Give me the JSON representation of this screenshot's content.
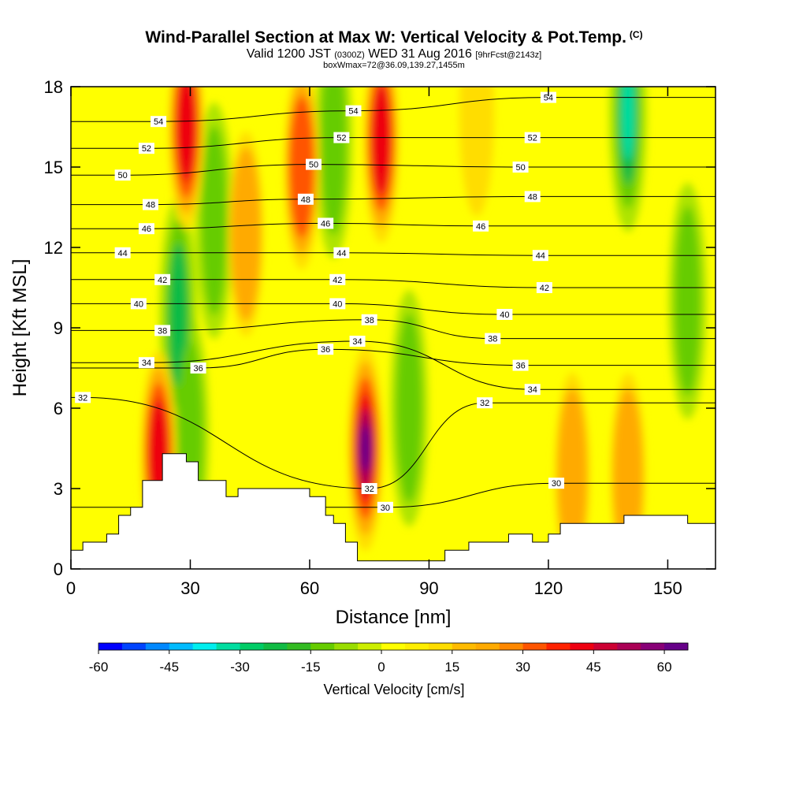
{
  "header": {
    "title": "Wind-Parallel Section at Max W: Vertical Velocity & Pot.Temp.",
    "copyright": "(C)",
    "valid_prefix": "Valid 1200 JST",
    "valid_utc": "(0300Z)",
    "valid_date": "WED 31 Aug 2016",
    "forecast": "[9hrFcst@2143z]",
    "box_info": "boxWmax=72@36.09,139.27,1455m"
  },
  "chart_data": {
    "type": "heatmap",
    "xlabel": "Distance [nm]",
    "ylabel": "Height [Kft MSL]",
    "xlim": [
      0,
      162
    ],
    "ylim": [
      0,
      18
    ],
    "x_ticks": [
      0,
      30,
      60,
      90,
      120,
      150
    ],
    "y_ticks": [
      0,
      3,
      6,
      9,
      12,
      15,
      18
    ],
    "x_tick_labels": [
      "0",
      "30",
      "60",
      "90",
      "120",
      "150"
    ],
    "y_tick_labels": [
      "0",
      "3",
      "6",
      "9",
      "12",
      "15",
      "18"
    ],
    "colorbar": {
      "label": "Vertical Velocity [cm/s]",
      "range": [
        -60,
        65
      ],
      "step": 5,
      "tick_values": [
        -60,
        -45,
        -30,
        -15,
        0,
        15,
        30,
        45,
        60
      ],
      "tick_labels": [
        "-60",
        "-45",
        "-30",
        "-15",
        "0",
        "15",
        "30",
        "45",
        "60"
      ],
      "colors": [
        "#0000ff",
        "#0044ff",
        "#0088ff",
        "#00bbff",
        "#00eeee",
        "#00dda0",
        "#00cc66",
        "#11bb44",
        "#33bb22",
        "#66cc00",
        "#99dd00",
        "#ccee00",
        "#ffff00",
        "#ffee00",
        "#ffdd00",
        "#ffbb00",
        "#ffaa00",
        "#ff8800",
        "#ff5500",
        "#ff2200",
        "#ee0011",
        "#cc0033",
        "#aa0055",
        "#880077",
        "#660088"
      ]
    },
    "updraft_cores": [
      {
        "x": 22,
        "y": 4.3,
        "w": 45
      },
      {
        "x": 29,
        "y": 16.5,
        "w": 45
      },
      {
        "x": 44,
        "y": 12.5,
        "w": 25
      },
      {
        "x": 58,
        "y": 15,
        "w": 30
      },
      {
        "x": 74,
        "y": 4.5,
        "w": 65
      },
      {
        "x": 78,
        "y": 16,
        "w": 45
      },
      {
        "x": 102,
        "y": 17,
        "w": 15
      },
      {
        "x": 126,
        "y": 3.5,
        "w": 25
      },
      {
        "x": 140,
        "y": 3.5,
        "w": 20
      }
    ],
    "downdraft_cores": [
      {
        "x": 27,
        "y": 9.5,
        "w": -30
      },
      {
        "x": 30,
        "y": 5,
        "w": -20
      },
      {
        "x": 36,
        "y": 13,
        "w": -15
      },
      {
        "x": 66,
        "y": 16,
        "w": -20
      },
      {
        "x": 85,
        "y": 6,
        "w": -15
      },
      {
        "x": 140,
        "y": 17,
        "w": -35
      },
      {
        "x": 155,
        "y": 10,
        "w": -15
      }
    ],
    "terrain": [
      {
        "x": 0,
        "h": 0.7
      },
      {
        "x": 3,
        "h": 1.0
      },
      {
        "x": 9,
        "h": 1.3
      },
      {
        "x": 12,
        "h": 2.0
      },
      {
        "x": 15,
        "h": 2.3
      },
      {
        "x": 18,
        "h": 3.3
      },
      {
        "x": 23,
        "h": 4.3
      },
      {
        "x": 29,
        "h": 4.0
      },
      {
        "x": 32,
        "h": 3.3
      },
      {
        "x": 39,
        "h": 2.7
      },
      {
        "x": 42,
        "h": 3.0
      },
      {
        "x": 60,
        "h": 2.7
      },
      {
        "x": 64,
        "h": 2.0
      },
      {
        "x": 66,
        "h": 1.7
      },
      {
        "x": 69,
        "h": 1.0
      },
      {
        "x": 72,
        "h": 0.3
      },
      {
        "x": 90,
        "h": 0.3
      },
      {
        "x": 94,
        "h": 0.7
      },
      {
        "x": 100,
        "h": 1.0
      },
      {
        "x": 110,
        "h": 1.3
      },
      {
        "x": 116,
        "h": 1.0
      },
      {
        "x": 120,
        "h": 1.3
      },
      {
        "x": 123,
        "h": 1.7
      },
      {
        "x": 139,
        "h": 2.0
      },
      {
        "x": 155,
        "h": 1.7
      },
      {
        "x": 162,
        "h": 1.7
      }
    ],
    "isentropes": [
      {
        "theta": 30,
        "label_pos": [
          {
            "x": 79,
            "y": 2.3
          },
          {
            "x": 122,
            "y": 3.2
          }
        ]
      },
      {
        "theta": 32,
        "label_pos": [
          {
            "x": 3,
            "y": 6.4
          },
          {
            "x": 75,
            "y": 3.0
          },
          {
            "x": 104,
            "y": 6.2
          }
        ]
      },
      {
        "theta": 34,
        "label_pos": [
          {
            "x": 19,
            "y": 7.7
          },
          {
            "x": 72,
            "y": 8.5
          },
          {
            "x": 116,
            "y": 6.7
          }
        ]
      },
      {
        "theta": 36,
        "label_pos": [
          {
            "x": 32,
            "y": 7.5
          },
          {
            "x": 64,
            "y": 8.2
          },
          {
            "x": 113,
            "y": 7.6
          }
        ]
      },
      {
        "theta": 38,
        "label_pos": [
          {
            "x": 23,
            "y": 8.9
          },
          {
            "x": 75,
            "y": 9.3
          },
          {
            "x": 106,
            "y": 8.6
          }
        ]
      },
      {
        "theta": 40,
        "label_pos": [
          {
            "x": 17,
            "y": 9.9
          },
          {
            "x": 67,
            "y": 9.9
          },
          {
            "x": 109,
            "y": 9.5
          }
        ]
      },
      {
        "theta": 42,
        "label_pos": [
          {
            "x": 23,
            "y": 10.8
          },
          {
            "x": 67,
            "y": 10.8
          },
          {
            "x": 119,
            "y": 10.5
          }
        ]
      },
      {
        "theta": 44,
        "label_pos": [
          {
            "x": 13,
            "y": 11.8
          },
          {
            "x": 68,
            "y": 11.8
          },
          {
            "x": 118,
            "y": 11.7
          }
        ]
      },
      {
        "theta": 46,
        "label_pos": [
          {
            "x": 19,
            "y": 12.7
          },
          {
            "x": 64,
            "y": 12.9
          },
          {
            "x": 103,
            "y": 12.8
          }
        ]
      },
      {
        "theta": 48,
        "label_pos": [
          {
            "x": 20,
            "y": 13.6
          },
          {
            "x": 59,
            "y": 13.8
          },
          {
            "x": 116,
            "y": 13.9
          }
        ]
      },
      {
        "theta": 50,
        "label_pos": [
          {
            "x": 13,
            "y": 14.7
          },
          {
            "x": 61,
            "y": 15.1
          },
          {
            "x": 113,
            "y": 15.0
          }
        ]
      },
      {
        "theta": 52,
        "label_pos": [
          {
            "x": 19,
            "y": 15.7
          },
          {
            "x": 68,
            "y": 16.1
          },
          {
            "x": 116,
            "y": 16.1
          }
        ]
      },
      {
        "theta": 54,
        "label_pos": [
          {
            "x": 22,
            "y": 16.7
          },
          {
            "x": 71,
            "y": 17.1
          },
          {
            "x": 120,
            "y": 17.6
          }
        ]
      }
    ]
  }
}
